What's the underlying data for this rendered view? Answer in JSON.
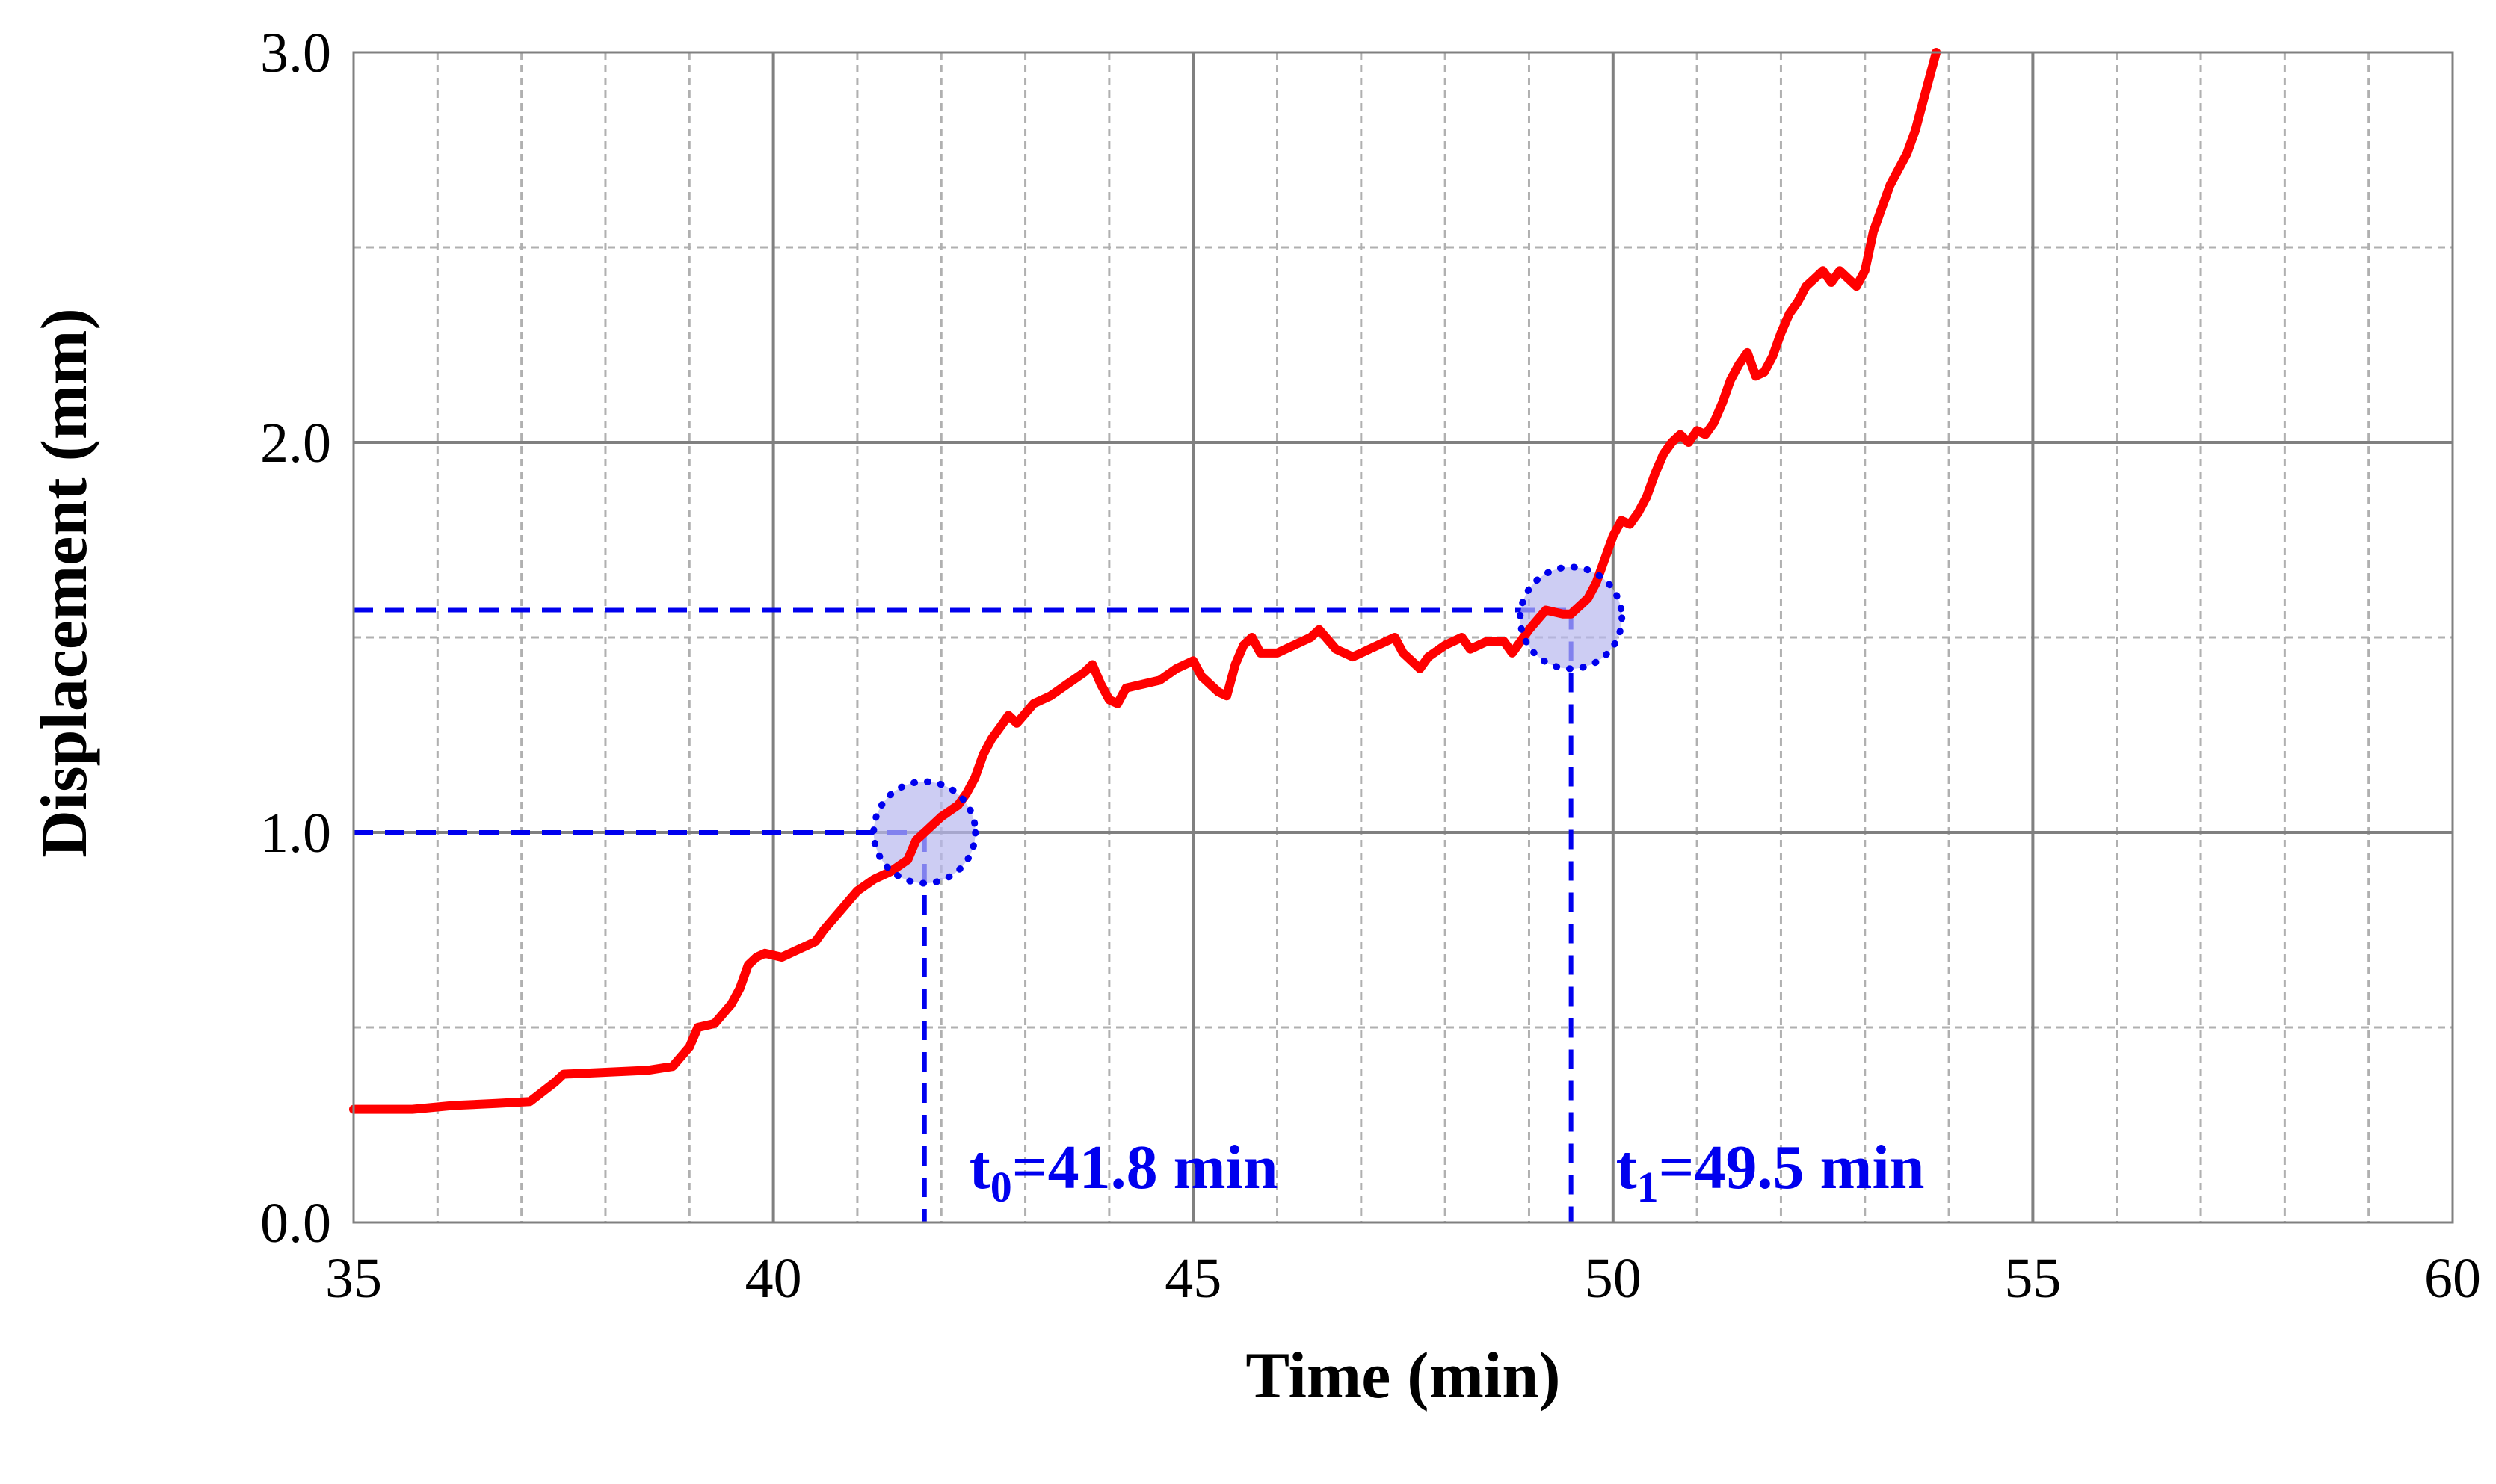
{
  "chart_data": {
    "type": "line",
    "title": "",
    "xlabel": "Time (min)",
    "ylabel": "Displacement (mm)",
    "xlim": [
      35,
      60
    ],
    "ylim": [
      0,
      3
    ],
    "x_ticks": [
      "35",
      "40",
      "45",
      "50",
      "55",
      "60"
    ],
    "y_ticks": [
      "0.0",
      "1.0",
      "2.0",
      "3.0"
    ],
    "grid": true,
    "colors": {
      "series": "#ff0000",
      "annotation": "#0000ee",
      "circle_fill": "#b8b8ee"
    },
    "series": [
      {
        "points": [
          [
            35,
            0.29
          ],
          [
            35.7,
            0.29
          ],
          [
            36.2,
            0.3
          ],
          [
            36.7,
            0.305
          ],
          [
            37.1,
            0.31
          ],
          [
            37.4,
            0.36
          ],
          [
            37.5,
            0.38
          ],
          [
            38.0,
            0.385
          ],
          [
            38.5,
            0.39
          ],
          [
            38.8,
            0.4
          ],
          [
            39.0,
            0.45
          ],
          [
            39.1,
            0.5
          ],
          [
            39.3,
            0.51
          ],
          [
            39.5,
            0.56
          ],
          [
            39.6,
            0.6
          ],
          [
            39.7,
            0.66
          ],
          [
            39.8,
            0.68
          ],
          [
            39.9,
            0.69
          ],
          [
            40.1,
            0.68
          ],
          [
            40.3,
            0.7
          ],
          [
            40.5,
            0.72
          ],
          [
            40.6,
            0.75
          ],
          [
            40.8,
            0.8
          ],
          [
            41.0,
            0.85
          ],
          [
            41.2,
            0.88
          ],
          [
            41.4,
            0.9
          ],
          [
            41.6,
            0.93
          ],
          [
            41.7,
            0.98
          ],
          [
            41.8,
            1.0
          ],
          [
            42.0,
            1.04
          ],
          [
            42.2,
            1.07
          ],
          [
            42.3,
            1.1
          ],
          [
            42.4,
            1.14
          ],
          [
            42.5,
            1.2
          ],
          [
            42.6,
            1.24
          ],
          [
            42.7,
            1.27
          ],
          [
            42.8,
            1.3
          ],
          [
            42.9,
            1.28
          ],
          [
            43.1,
            1.33
          ],
          [
            43.3,
            1.35
          ],
          [
            43.5,
            1.38
          ],
          [
            43.7,
            1.41
          ],
          [
            43.8,
            1.43
          ],
          [
            43.9,
            1.38
          ],
          [
            44.0,
            1.34
          ],
          [
            44.1,
            1.33
          ],
          [
            44.2,
            1.37
          ],
          [
            44.4,
            1.38
          ],
          [
            44.6,
            1.39
          ],
          [
            44.8,
            1.42
          ],
          [
            45.0,
            1.44
          ],
          [
            45.1,
            1.4
          ],
          [
            45.3,
            1.36
          ],
          [
            45.4,
            1.35
          ],
          [
            45.5,
            1.43
          ],
          [
            45.6,
            1.48
          ],
          [
            45.7,
            1.5
          ],
          [
            45.8,
            1.46
          ],
          [
            46.0,
            1.46
          ],
          [
            46.2,
            1.48
          ],
          [
            46.4,
            1.5
          ],
          [
            46.5,
            1.52
          ],
          [
            46.7,
            1.47
          ],
          [
            46.9,
            1.45
          ],
          [
            47.0,
            1.46
          ],
          [
            47.2,
            1.48
          ],
          [
            47.4,
            1.5
          ],
          [
            47.5,
            1.46
          ],
          [
            47.7,
            1.42
          ],
          [
            47.8,
            1.45
          ],
          [
            48.0,
            1.48
          ],
          [
            48.2,
            1.5
          ],
          [
            48.3,
            1.47
          ],
          [
            48.5,
            1.49
          ],
          [
            48.7,
            1.49
          ],
          [
            48.8,
            1.46
          ],
          [
            49.0,
            1.52
          ],
          [
            49.2,
            1.57
          ],
          [
            49.4,
            1.56
          ],
          [
            49.5,
            1.56
          ],
          [
            49.6,
            1.58
          ],
          [
            49.7,
            1.6
          ],
          [
            49.8,
            1.64
          ],
          [
            49.9,
            1.7
          ],
          [
            50.0,
            1.76
          ],
          [
            50.1,
            1.8
          ],
          [
            50.2,
            1.79
          ],
          [
            50.3,
            1.82
          ],
          [
            50.4,
            1.86
          ],
          [
            50.5,
            1.92
          ],
          [
            50.6,
            1.97
          ],
          [
            50.7,
            2.0
          ],
          [
            50.8,
            2.02
          ],
          [
            50.9,
            2.0
          ],
          [
            51.0,
            2.03
          ],
          [
            51.1,
            2.02
          ],
          [
            51.2,
            2.05
          ],
          [
            51.3,
            2.1
          ],
          [
            51.4,
            2.16
          ],
          [
            51.5,
            2.2
          ],
          [
            51.6,
            2.23
          ],
          [
            51.7,
            2.17
          ],
          [
            51.8,
            2.18
          ],
          [
            51.9,
            2.22
          ],
          [
            52.0,
            2.28
          ],
          [
            52.1,
            2.33
          ],
          [
            52.2,
            2.36
          ],
          [
            52.3,
            2.4
          ],
          [
            52.4,
            2.42
          ],
          [
            52.5,
            2.44
          ],
          [
            52.6,
            2.41
          ],
          [
            52.7,
            2.44
          ],
          [
            52.8,
            2.42
          ],
          [
            52.9,
            2.4
          ],
          [
            53.0,
            2.44
          ],
          [
            53.1,
            2.54
          ],
          [
            53.2,
            2.6
          ],
          [
            53.3,
            2.66
          ],
          [
            53.4,
            2.7
          ],
          [
            53.5,
            2.74
          ],
          [
            53.6,
            2.8
          ],
          [
            53.7,
            2.88
          ],
          [
            53.8,
            2.96
          ],
          [
            53.85,
            3.0
          ]
        ]
      }
    ],
    "annotations": [
      {
        "label_prefix": "t",
        "label_sub": "0",
        "label_rest": "=41.8 min",
        "t": 41.8,
        "y": 1.0,
        "circle_center": [
          41.8,
          1.0
        ]
      },
      {
        "label_prefix": "t",
        "label_sub": "1",
        "label_rest": "=49.5 min",
        "t": 49.5,
        "y": 1.57,
        "circle_center": [
          49.5,
          1.55
        ]
      }
    ]
  }
}
